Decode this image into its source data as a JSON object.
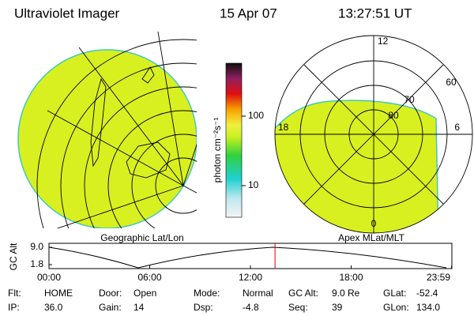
{
  "header": {
    "title": "Ultraviolet Imager",
    "date": "15 Apr 07",
    "time": "13:27:51 UT"
  },
  "colorbar": {
    "label": "photon cm⁻²s⁻¹",
    "ticks": [
      10,
      100
    ]
  },
  "geo_panel": {
    "label": "Geographic Lat/Lon"
  },
  "polar_panel": {
    "label": "Apex MLat/MLT",
    "lat_labels": [
      60,
      70,
      80
    ],
    "mlt_labels": [
      "12",
      "18",
      "6",
      "0"
    ]
  },
  "altitude_plot": {
    "ylabel": "GC Alt",
    "yticks": [
      {
        "value": 9.0,
        "label": "9.0"
      },
      {
        "value": 1.8,
        "label": "1.8"
      }
    ],
    "xticks": [
      "00:00",
      "06:00",
      "12:00",
      "18:00",
      "23:59"
    ]
  },
  "status": [
    [
      [
        "Flt:",
        "HOME"
      ],
      [
        "Door:",
        "Open"
      ],
      [
        "Mode:",
        "Normal"
      ],
      [
        "GC Alt:",
        "9.0 Re"
      ],
      [
        "GLat:",
        "-52.4"
      ]
    ],
    [
      [
        "IP:",
        "36.0"
      ],
      [
        "Gain:",
        "14"
      ],
      [
        "Dsp:",
        "-4.8"
      ],
      [
        "Seq:",
        "39"
      ],
      [
        "GLon:",
        "134.0"
      ]
    ]
  ]
}
